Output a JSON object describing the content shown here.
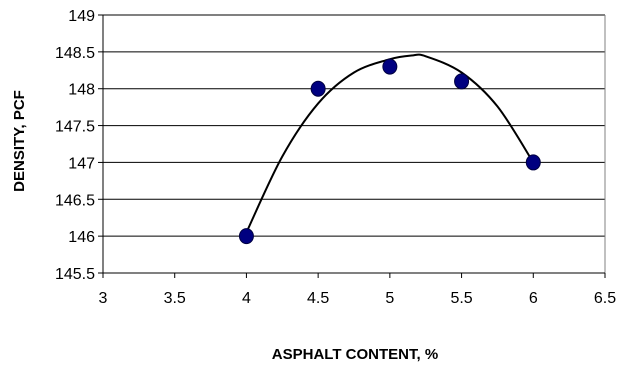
{
  "chart_data": {
    "type": "scatter",
    "title": "",
    "xlabel": "ASPHALT CONTENT, %",
    "ylabel": "DENSITY, PCF",
    "xlim": [
      3,
      6.5
    ],
    "ylim": [
      145.5,
      149
    ],
    "xticks": [
      3,
      3.5,
      4,
      4.5,
      5,
      5.5,
      6,
      6.5
    ],
    "yticks": [
      145.5,
      146,
      146.5,
      147,
      147.5,
      148,
      148.5,
      149
    ],
    "grid": {
      "horizontal": true,
      "vertical": false
    },
    "legend": "none",
    "series": [
      {
        "values": [
          {
            "x": 4.0,
            "y": 146.0
          },
          {
            "x": 4.5,
            "y": 148.0
          },
          {
            "x": 5.0,
            "y": 148.3
          },
          {
            "x": 5.5,
            "y": 148.1
          },
          {
            "x": 6.0,
            "y": 147.0
          }
        ],
        "marker_color": "#000080"
      }
    ],
    "trendline": {
      "type": "polynomial",
      "x_range": [
        4.0,
        6.0
      ],
      "points": [
        {
          "x": 4.0,
          "y": 146.05
        },
        {
          "x": 4.25,
          "y": 147.08
        },
        {
          "x": 4.5,
          "y": 147.8
        },
        {
          "x": 4.75,
          "y": 148.22
        },
        {
          "x": 5.0,
          "y": 148.4
        },
        {
          "x": 5.15,
          "y": 148.45
        },
        {
          "x": 5.25,
          "y": 148.44
        },
        {
          "x": 5.5,
          "y": 148.22
        },
        {
          "x": 5.75,
          "y": 147.76
        },
        {
          "x": 6.0,
          "y": 147.0
        }
      ],
      "color": "#000000"
    }
  }
}
